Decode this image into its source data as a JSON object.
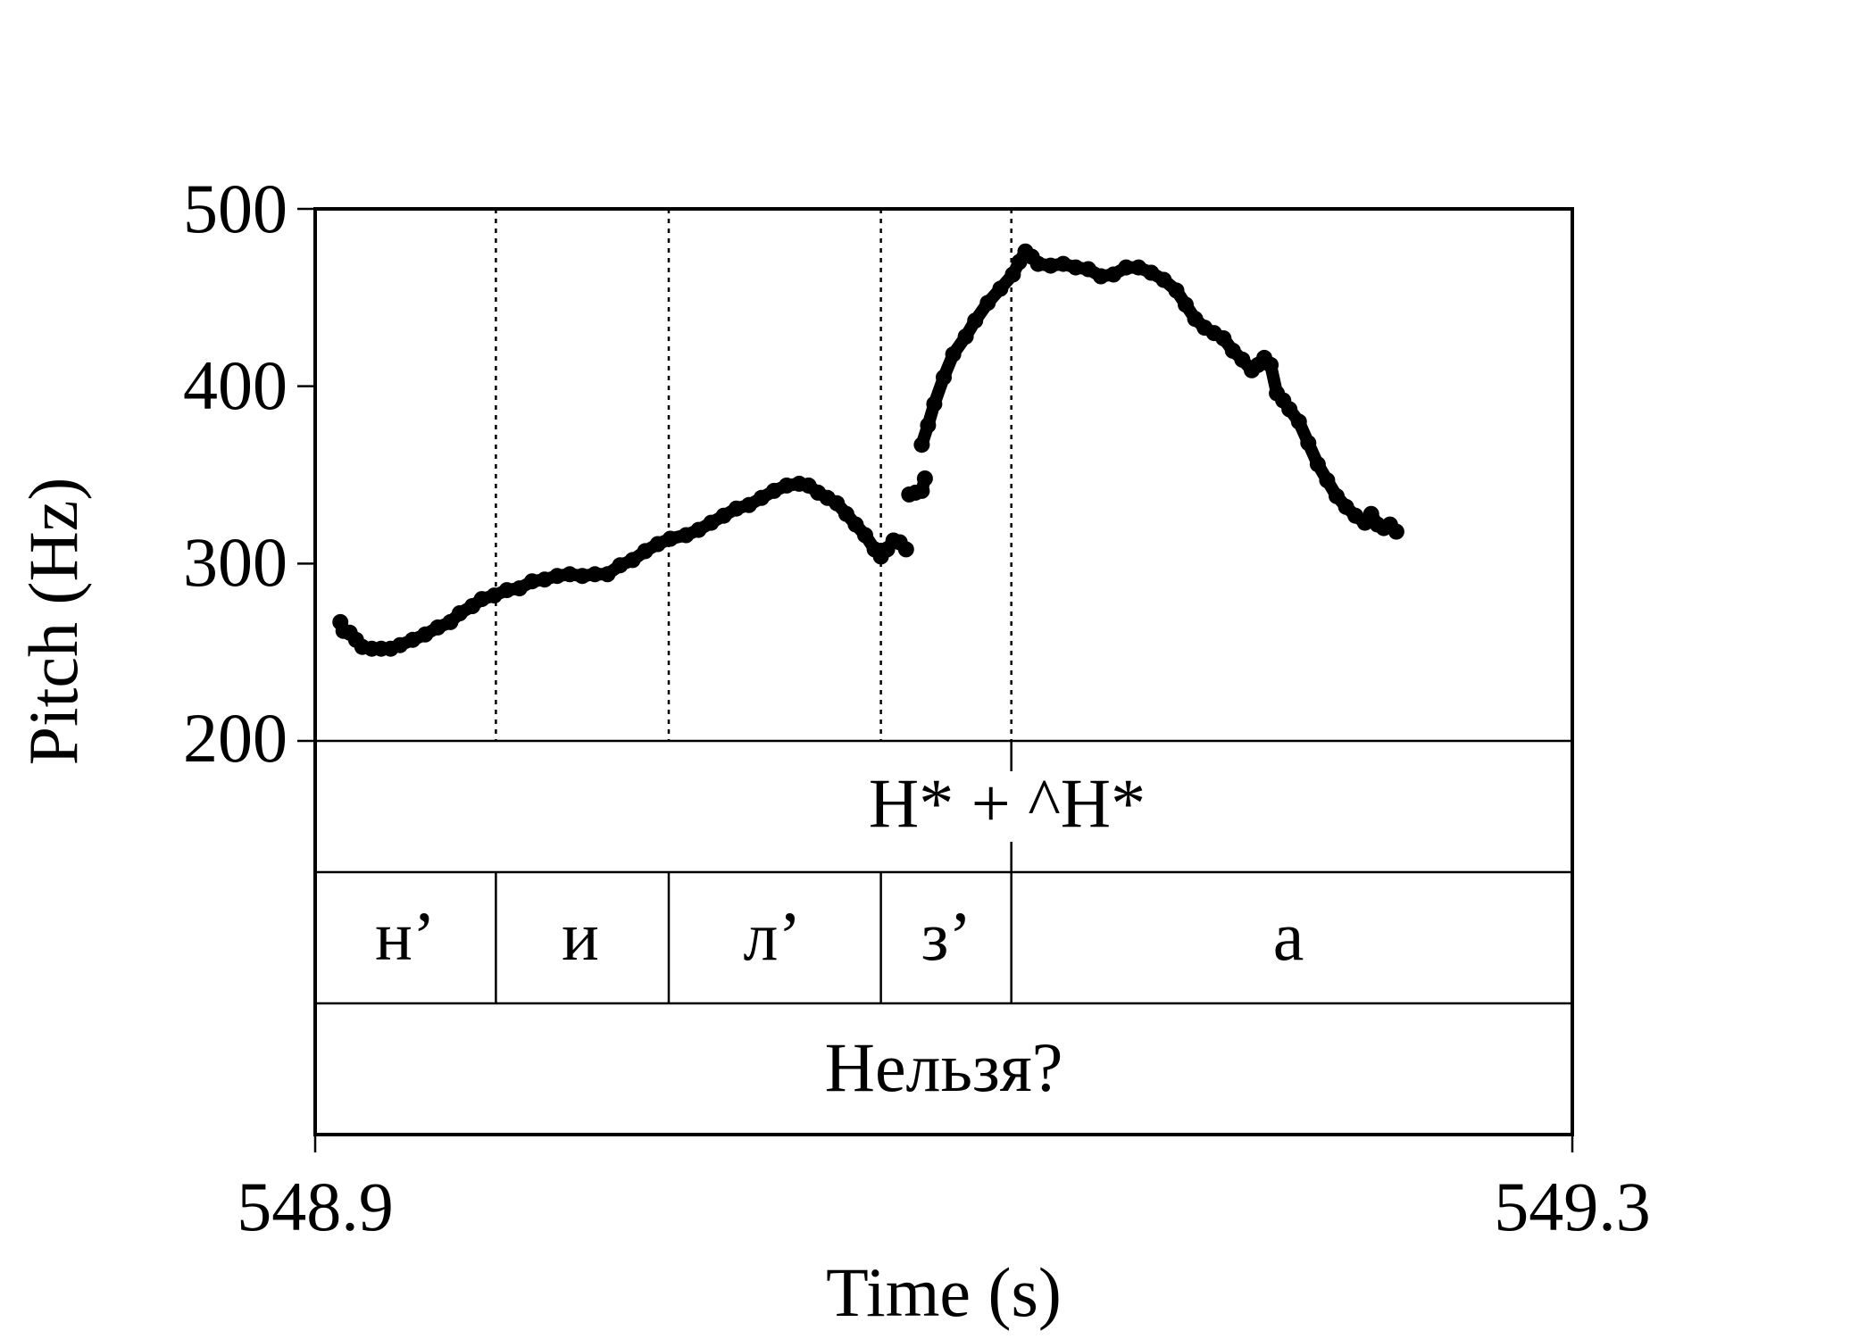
{
  "chart_data": {
    "type": "line",
    "xlabel": "Time (s)",
    "ylabel": "Pitch (Hz)",
    "xlim": [
      548.9,
      549.3
    ],
    "ylim": [
      200,
      500
    ],
    "x_ticks": [
      "548.9",
      "549.3"
    ],
    "y_ticks": [
      "200",
      "300",
      "400",
      "500"
    ],
    "grid": false,
    "series": [
      {
        "segments": [
          [
            [
              548.908,
              267
            ],
            [
              548.909,
              262
            ],
            [
              548.911,
              261
            ],
            [
              548.913,
              257
            ],
            [
              548.915,
              253
            ],
            [
              548.918,
              252
            ],
            [
              548.921,
              252
            ],
            [
              548.924,
              252
            ],
            [
              548.927,
              254
            ],
            [
              548.931,
              257
            ],
            [
              548.935,
              260
            ],
            [
              548.939,
              264
            ],
            [
              548.943,
              267
            ],
            [
              548.946,
              272
            ],
            [
              548.95,
              276
            ],
            [
              548.953,
              280
            ],
            [
              548.957,
              282
            ],
            [
              548.961,
              285
            ],
            [
              548.965,
              286
            ],
            [
              548.969,
              290
            ],
            [
              548.973,
              291
            ],
            [
              548.977,
              293
            ],
            [
              548.981,
              294
            ],
            [
              548.985,
              293
            ],
            [
              548.989,
              294
            ],
            [
              548.993,
              294
            ],
            [
              548.997,
              299
            ],
            [
              549.001,
              302
            ],
            [
              549.005,
              307
            ],
            [
              549.009,
              311
            ],
            [
              549.013,
              314
            ],
            [
              549.018,
              316
            ],
            [
              549.022,
              319
            ],
            [
              549.026,
              323
            ],
            [
              549.03,
              327
            ],
            [
              549.034,
              331
            ],
            [
              549.038,
              333
            ],
            [
              549.042,
              337
            ],
            [
              549.046,
              341
            ],
            [
              549.05,
              344
            ],
            [
              549.054,
              345
            ],
            [
              549.057,
              344
            ],
            [
              549.06,
              340
            ],
            [
              549.063,
              337
            ],
            [
              549.066,
              334
            ],
            [
              549.069,
              328
            ],
            [
              549.072,
              322
            ],
            [
              549.075,
              316
            ],
            [
              549.078,
              308
            ],
            [
              549.08,
              304
            ],
            [
              549.082,
              308
            ],
            [
              549.084,
              313
            ],
            [
              549.086,
              312
            ],
            [
              549.088,
              308
            ]
          ],
          [
            [
              549.089,
              339
            ],
            [
              549.091,
              340
            ],
            [
              549.093,
              341
            ],
            [
              549.094,
              348
            ]
          ],
          [
            [
              549.093,
              367
            ],
            [
              549.095,
              378
            ],
            [
              549.097,
              390
            ],
            [
              549.1,
              405
            ],
            [
              549.103,
              418
            ],
            [
              549.107,
              428
            ],
            [
              549.11,
              437
            ],
            [
              549.114,
              447
            ],
            [
              549.118,
              455
            ],
            [
              549.122,
              463
            ],
            [
              549.124,
              470
            ],
            [
              549.126,
              476
            ],
            [
              549.128,
              473
            ],
            [
              549.13,
              469
            ],
            [
              549.134,
              468
            ],
            [
              549.138,
              469
            ],
            [
              549.142,
              467
            ],
            [
              549.146,
              466
            ],
            [
              549.15,
              462
            ],
            [
              549.154,
              463
            ],
            [
              549.158,
              467
            ],
            [
              549.162,
              467
            ],
            [
              549.166,
              464
            ],
            [
              549.17,
              460
            ],
            [
              549.174,
              454
            ],
            [
              549.177,
              446
            ],
            [
              549.18,
              438
            ],
            [
              549.183,
              433
            ],
            [
              549.186,
              430
            ],
            [
              549.189,
              427
            ],
            [
              549.192,
              420
            ],
            [
              549.195,
              415
            ],
            [
              549.198,
              409
            ],
            [
              549.2,
              412
            ],
            [
              549.202,
              416
            ],
            [
              549.204,
              412
            ],
            [
              549.206,
              396
            ],
            [
              549.208,
              392
            ],
            [
              549.21,
              387
            ],
            [
              549.213,
              380
            ],
            [
              549.216,
              368
            ],
            [
              549.219,
              356
            ],
            [
              549.222,
              347
            ],
            [
              549.225,
              338
            ],
            [
              549.228,
              332
            ],
            [
              549.231,
              327
            ],
            [
              549.234,
              323
            ],
            [
              549.236,
              328
            ],
            [
              549.238,
              322
            ],
            [
              549.24,
              320
            ],
            [
              549.242,
              322
            ],
            [
              549.244,
              318
            ]
          ]
        ]
      }
    ],
    "boundaries": [
      548.9575,
      549.0125,
      549.08,
      549.1215
    ],
    "tiers": [
      {
        "intervals": [
          {
            "start": 548.9,
            "end": 549.3,
            "label": "H* + ^H*"
          }
        ]
      },
      {
        "intervals": [
          {
            "start": 548.9,
            "end": 548.9575,
            "label": "н’"
          },
          {
            "start": 548.9575,
            "end": 549.0125,
            "label": "и"
          },
          {
            "start": 549.0125,
            "end": 549.08,
            "label": "л’"
          },
          {
            "start": 549.08,
            "end": 549.1215,
            "label": "з’"
          },
          {
            "start": 549.1215,
            "end": 549.3,
            "label": "а"
          }
        ]
      },
      {
        "intervals": [
          {
            "start": 548.9,
            "end": 549.3,
            "label": "Нельзя?"
          }
        ]
      }
    ],
    "tier1_point_mark": 549.1215
  }
}
